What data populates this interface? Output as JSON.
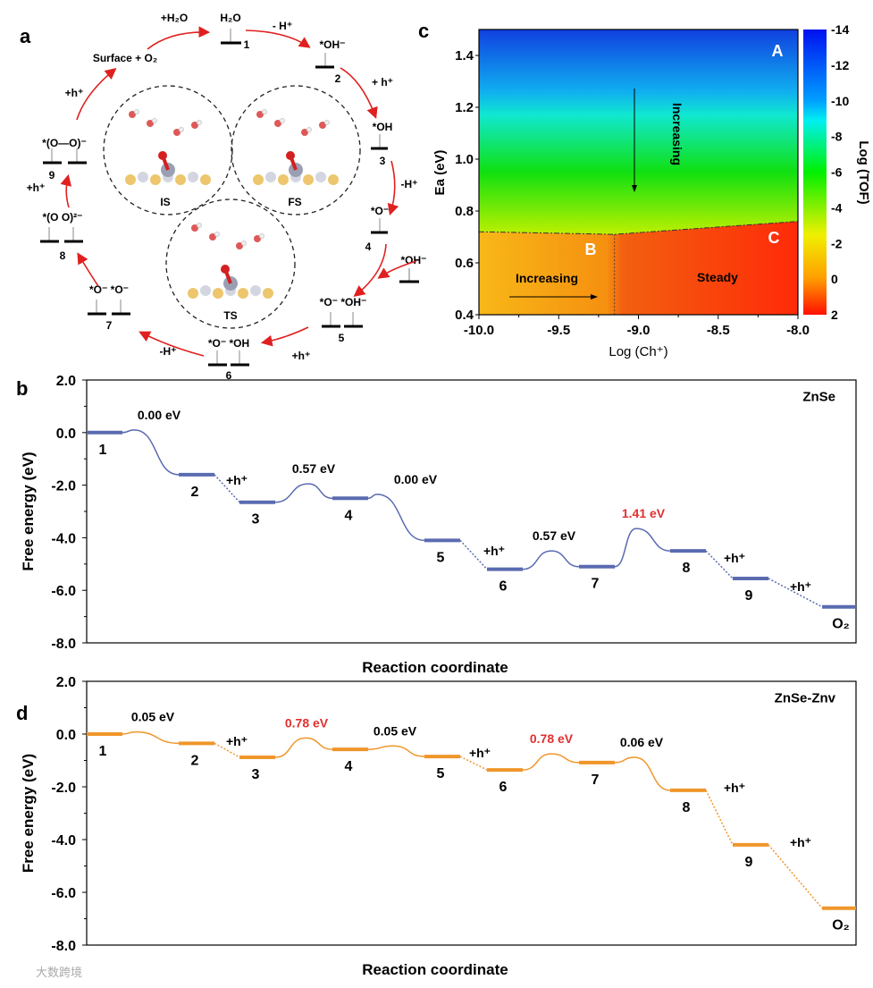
{
  "panel_labels": {
    "a": "a",
    "b": "b",
    "c": "c",
    "d": "d"
  },
  "cycle": {
    "add_water": "+H₂O",
    "surface_o2": "Surface + O₂",
    "states": [
      {
        "num": "1",
        "label": "H₂O"
      },
      {
        "num": "2",
        "label": "*OH⁻"
      },
      {
        "num": "3",
        "label": "*OH"
      },
      {
        "num": "4",
        "label": "*O⁻"
      },
      {
        "num": "5",
        "label": "*O⁻ *OH⁻"
      },
      {
        "num": "6",
        "label": "*O⁻ *OH"
      },
      {
        "num": "7",
        "label": "*O⁻ *O⁻"
      },
      {
        "num": "8",
        "label": "*(O   O)²⁻"
      },
      {
        "num": "9",
        "label": "*(O—O)⁻"
      }
    ],
    "side_oh": "*OH⁻",
    "steps": [
      "- H⁺",
      "+ h⁺",
      "-H⁺",
      "+h⁺",
      "-H⁺",
      "+h⁺",
      "+h⁺"
    ],
    "structures": [
      "IS",
      "FS",
      "TS"
    ],
    "atom_colors": {
      "O": "#d42020",
      "H": "#ffffff",
      "Zn": "#9aa0b4",
      "Se": "#e8b848"
    }
  },
  "chart_data": [
    {
      "id": "c",
      "type": "heatmap",
      "xlabel": "Log (Ch⁺)",
      "ylabel": "Ea (eV)",
      "xlim": [
        -10.0,
        -8.0
      ],
      "ylim": [
        0.4,
        1.5
      ],
      "xticks": [
        "-10.0",
        "-9.5",
        "-9.0",
        "-8.5",
        "-8.0"
      ],
      "yticks": [
        "0.4",
        "0.6",
        "0.8",
        "1.0",
        "1.2",
        "1.4"
      ],
      "colorbar": {
        "label": "Log (TOF)",
        "range": [
          2,
          -14
        ],
        "ticks": [
          "-14",
          "-12",
          "-10",
          "-8",
          "-6",
          "-4",
          "-2",
          "0",
          "2"
        ]
      },
      "boundary": [
        [
          -10.0,
          0.72
        ],
        [
          -9.15,
          0.71
        ],
        [
          -8.0,
          0.76
        ]
      ],
      "vertical_boundary_x": -9.15,
      "regions": {
        "A": "A",
        "B": "B",
        "C": "C"
      },
      "annotations": {
        "vertical": "Increasing",
        "horizontal": "Increasing",
        "steady": "Steady"
      }
    },
    {
      "id": "b",
      "type": "line",
      "title": "ZnSe",
      "xlabel": "Reaction coordinate",
      "ylabel": "Free energy (eV)",
      "ylim": [
        -8.0,
        2.0
      ],
      "yticks": [
        "2.0",
        "0.0",
        "-2.0",
        "-4.0",
        "-6.0",
        "-8.0"
      ],
      "color": "#5a6bb0",
      "levels": [
        {
          "label": "1",
          "value": 0.0
        },
        {
          "label": "2",
          "value": -1.6
        },
        {
          "label": "3",
          "value": -2.65
        },
        {
          "label": "4",
          "value": -2.5
        },
        {
          "label": "5",
          "value": -4.1
        },
        {
          "label": "6",
          "value": -5.2
        },
        {
          "label": "7",
          "value": -5.1
        },
        {
          "label": "8",
          "value": -4.5
        },
        {
          "label": "9",
          "value": -5.55
        },
        {
          "label": "O₂",
          "value": -6.63
        }
      ],
      "barriers": [
        {
          "from": 0,
          "peak": 0.1,
          "label": "0.00 eV",
          "highlight": false
        },
        {
          "from": 2,
          "peak": -1.95,
          "label": "0.57 eV",
          "highlight": false
        },
        {
          "from": 3,
          "peak": -2.35,
          "label": "0.00 eV",
          "highlight": false
        },
        {
          "from": 5,
          "peak": -4.5,
          "label": "0.57 eV",
          "highlight": false
        },
        {
          "from": 6,
          "peak": -3.65,
          "label": "1.41 eV",
          "highlight": true
        }
      ],
      "hole_steps": [
        {
          "from": 1,
          "label": "+h⁺"
        },
        {
          "from": 4,
          "label": "+h⁺"
        },
        {
          "from": 7,
          "label": "+h⁺"
        },
        {
          "from": 8,
          "label": "+h⁺"
        }
      ]
    },
    {
      "id": "d",
      "type": "line",
      "title": "ZnSe-Znv",
      "xlabel": "Reaction coordinate",
      "ylabel": "Free energy (eV)",
      "ylim": [
        -8.0,
        2.0
      ],
      "yticks": [
        "2.0",
        "0.0",
        "-2.0",
        "-4.0",
        "-6.0",
        "-8.0"
      ],
      "color": "#f0962a",
      "levels": [
        {
          "label": "1",
          "value": 0.0
        },
        {
          "label": "2",
          "value": -0.35
        },
        {
          "label": "3",
          "value": -0.88
        },
        {
          "label": "4",
          "value": -0.58
        },
        {
          "label": "5",
          "value": -0.85
        },
        {
          "label": "6",
          "value": -1.36
        },
        {
          "label": "7",
          "value": -1.08
        },
        {
          "label": "8",
          "value": -2.13
        },
        {
          "label": "9",
          "value": -4.2
        },
        {
          "label": "O₂",
          "value": -6.6
        }
      ],
      "barriers": [
        {
          "from": 0,
          "peak": 0.08,
          "label": "0.05 eV",
          "highlight": false
        },
        {
          "from": 2,
          "peak": -0.15,
          "label": "0.78 eV",
          "highlight": true
        },
        {
          "from": 3,
          "peak": -0.45,
          "label": "0.05 eV",
          "highlight": false
        },
        {
          "from": 5,
          "peak": -0.75,
          "label": "0.78 eV",
          "highlight": true
        },
        {
          "from": 6,
          "peak": -0.88,
          "label": "0.06 eV",
          "highlight": false
        }
      ],
      "hole_steps": [
        {
          "from": 1,
          "label": "+h⁺"
        },
        {
          "from": 4,
          "label": "+h⁺"
        },
        {
          "from": 7,
          "label": "+h⁺"
        },
        {
          "from": 8,
          "label": "+h⁺"
        }
      ]
    }
  ],
  "colors": {
    "arrow": "#e02020",
    "highlight": "#e03030",
    "axis": "#000000"
  },
  "watermark": "大数跨境"
}
